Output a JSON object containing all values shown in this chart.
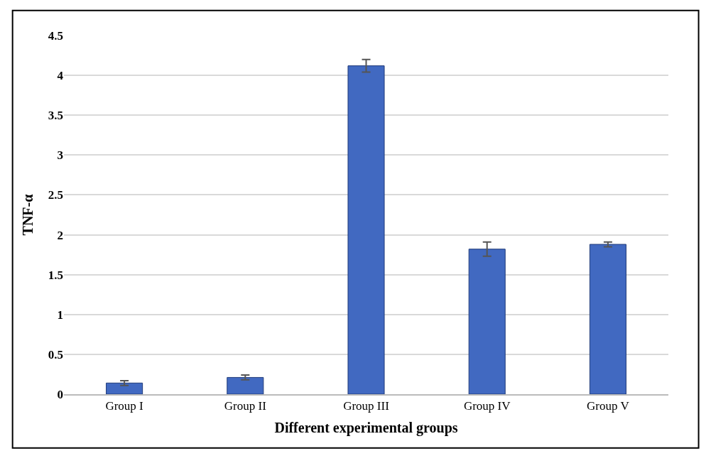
{
  "chart_data": {
    "type": "bar",
    "xlabel": "Different experimental groups",
    "ylabel": "TNF-α",
    "categories": [
      "Group I",
      "Group II",
      "Group III",
      "Group IV",
      "Group V"
    ],
    "values": [
      0.14,
      0.21,
      4.12,
      1.82,
      1.88
    ],
    "errors": [
      0.03,
      0.03,
      0.08,
      0.09,
      0.03
    ],
    "color": "#4169c1",
    "ylim": [
      0,
      4.5
    ],
    "yticks": [
      0,
      0.5,
      1,
      1.5,
      2,
      2.5,
      3,
      3.5,
      4,
      4.5
    ],
    "grid": "y"
  }
}
